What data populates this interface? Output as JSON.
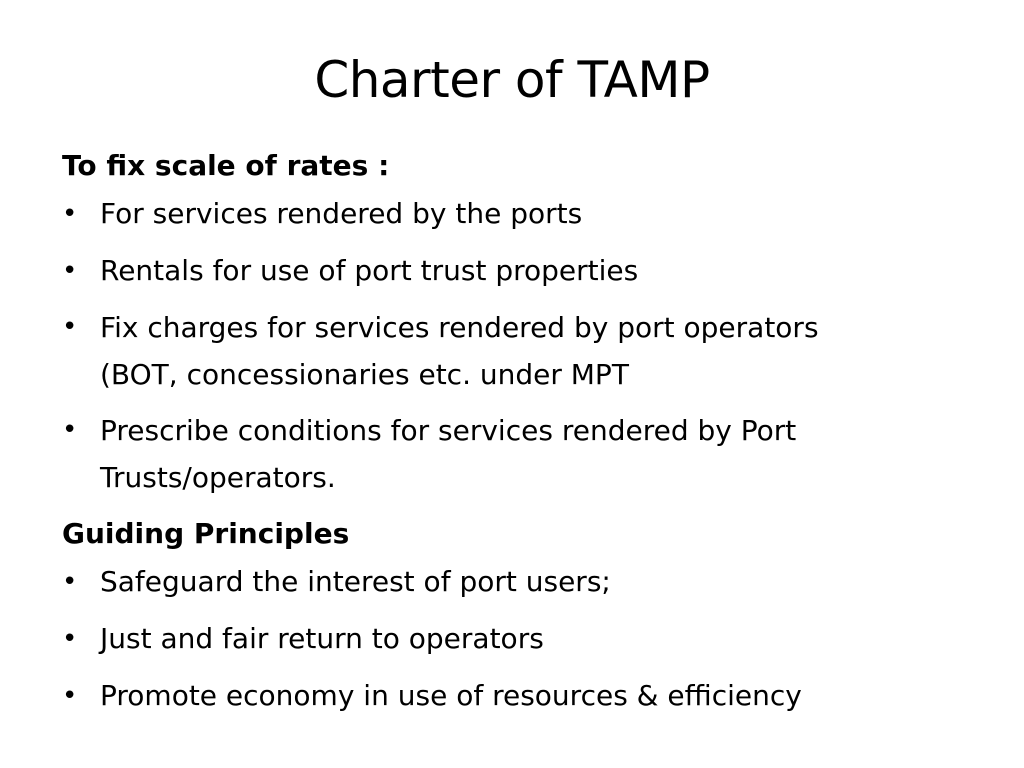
{
  "slide": {
    "title": "Charter of TAMP",
    "sections": [
      {
        "heading": "To fix scale of rates :",
        "bullets": [
          {
            "line1": "For services rendered by the ports",
            "line2": ""
          },
          {
            "line1": "Rentals for use of port trust properties",
            "line2": ""
          },
          {
            "line1": "Fix charges for services rendered by port operators",
            "line2": "(BOT, concessionaries etc. under MPT"
          },
          {
            "line1": "Prescribe conditions for services rendered by Port",
            "line2": "Trusts/operators."
          }
        ]
      },
      {
        "heading": "Guiding Principles",
        "bullets": [
          {
            "line1": "Safeguard the interest of port users;",
            "line2": ""
          },
          {
            "line1": "Just and fair return to operators",
            "line2": ""
          },
          {
            "line1": "Promote economy in use of resources & efficiency",
            "line2": ""
          }
        ]
      }
    ],
    "bullet_glyph": "•"
  }
}
